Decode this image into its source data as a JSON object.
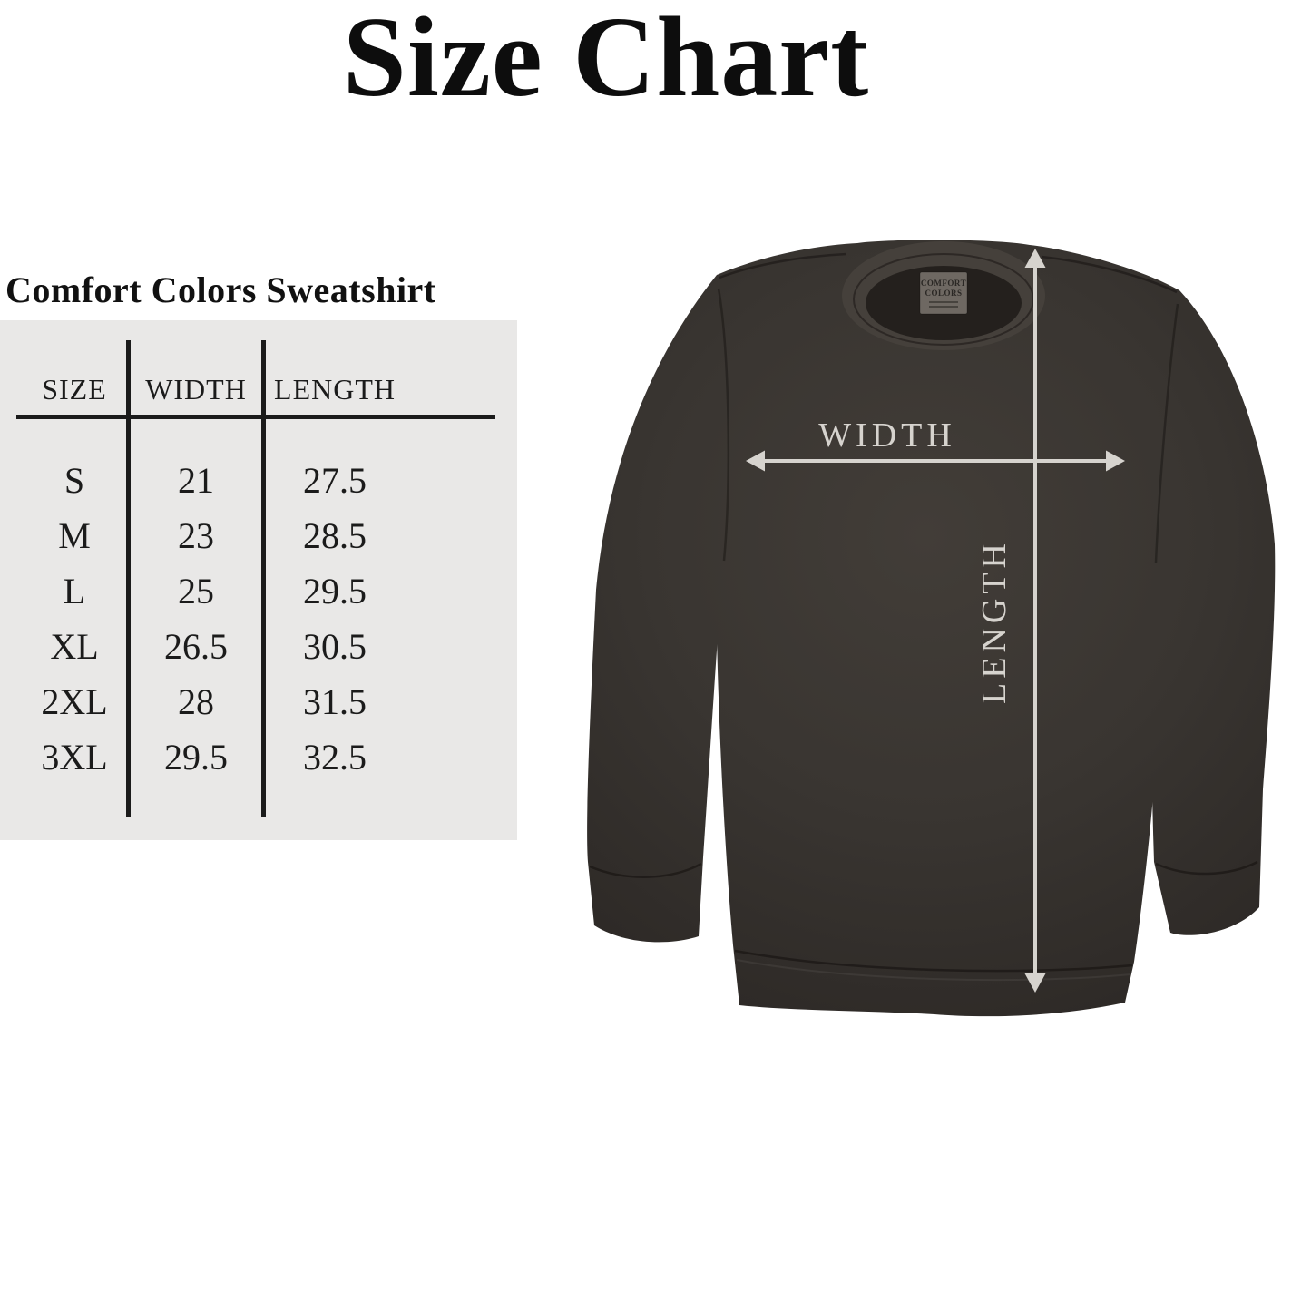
{
  "header": {
    "title": "Size Chart"
  },
  "table_section": {
    "heading": "Comfort Colors Sweatshirt",
    "panel_color": "#e9e8e7",
    "line_color": "#1b1b1b"
  },
  "chart_data": {
    "type": "table",
    "title": "Size Chart",
    "subtitle": "Comfort Colors Sweatshirt",
    "columns": [
      "SIZE",
      "WIDTH",
      "LENGTH"
    ],
    "rows": [
      [
        "S",
        "21",
        "27.5"
      ],
      [
        "M",
        "23",
        "28.5"
      ],
      [
        "L",
        "25",
        "29.5"
      ],
      [
        "XL",
        "26.5",
        "30.5"
      ],
      [
        "2XL",
        "28",
        "31.5"
      ],
      [
        "3XL",
        "29.5",
        "32.5"
      ]
    ]
  },
  "diagram": {
    "garment": "crewneck sweatshirt flat lay",
    "width_label": "WIDTH",
    "length_label": "LENGTH",
    "tag_line1": "COMFORT",
    "tag_line2": "COLORS",
    "arrow_color": "#d6d3ce",
    "garment_color": "#393531"
  }
}
